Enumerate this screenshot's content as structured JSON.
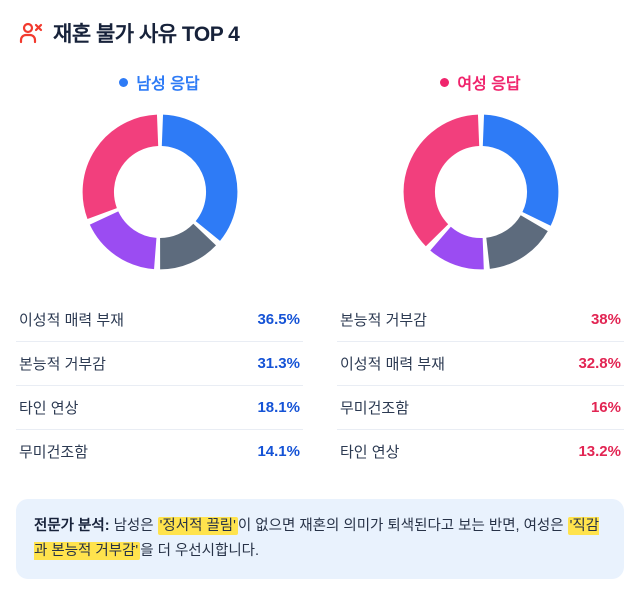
{
  "header": {
    "title": "재혼 불가 사유 TOP 4",
    "icon": "person-x-icon",
    "icon_color": "#f23a2e"
  },
  "columns": [
    {
      "legend": "남성 응답",
      "accent": "#2e7bf6",
      "value_color": "#1553d6",
      "rows": [
        {
          "label": "이성적 매력 부재",
          "value": "36.5%"
        },
        {
          "label": "본능적 거부감",
          "value": "31.3%"
        },
        {
          "label": "타인 연상",
          "value": "18.1%"
        },
        {
          "label": "무미건조함",
          "value": "14.1%"
        }
      ]
    },
    {
      "legend": "여성 응답",
      "accent": "#f0256d",
      "value_color": "#e22553",
      "rows": [
        {
          "label": "본능적 거부감",
          "value": "38%"
        },
        {
          "label": "이성적 매력 부재",
          "value": "32.8%"
        },
        {
          "label": "무미건조함",
          "value": "16%"
        },
        {
          "label": "타인 연상",
          "value": "13.2%"
        }
      ]
    }
  ],
  "chart_data": [
    {
      "type": "pie",
      "donut": true,
      "title": "남성 응답",
      "categories": [
        "이성적 매력 부재",
        "무미건조함",
        "타인 연상",
        "본능적 거부감"
      ],
      "values": [
        36.5,
        14.1,
        18.1,
        31.3
      ],
      "colors": [
        "#2e7bf6",
        "#5d6b7d",
        "#9b4cf2",
        "#f23f7d"
      ],
      "start_angle": 0,
      "order": "clockwise-from-top",
      "legend_position": "top"
    },
    {
      "type": "pie",
      "donut": true,
      "title": "여성 응답",
      "categories": [
        "이성적 매력 부재",
        "무미건조함",
        "타인 연상",
        "본능적 거부감"
      ],
      "values": [
        32.8,
        16,
        13.2,
        38
      ],
      "colors": [
        "#2e7bf6",
        "#5d6b7d",
        "#9b4cf2",
        "#f23f7d"
      ],
      "start_angle": 0,
      "order": "clockwise-from-top",
      "legend_position": "top"
    }
  ],
  "analysis": {
    "label": "전문가 분석:",
    "parts": [
      {
        "text": " 남성은 ",
        "highlight": false
      },
      {
        "text": "'정서적 끌림'",
        "highlight": true
      },
      {
        "text": "이 없으면 재혼의 의미가 퇴색된다고 보는 반면, 여성은 ",
        "highlight": false
      },
      {
        "text": "'직감과 본능적 거부감'",
        "highlight": true
      },
      {
        "text": "을 더 우선시합니다.",
        "highlight": false
      }
    ],
    "highlight_color": "#ffe34d",
    "background": "#e9f2fd"
  }
}
